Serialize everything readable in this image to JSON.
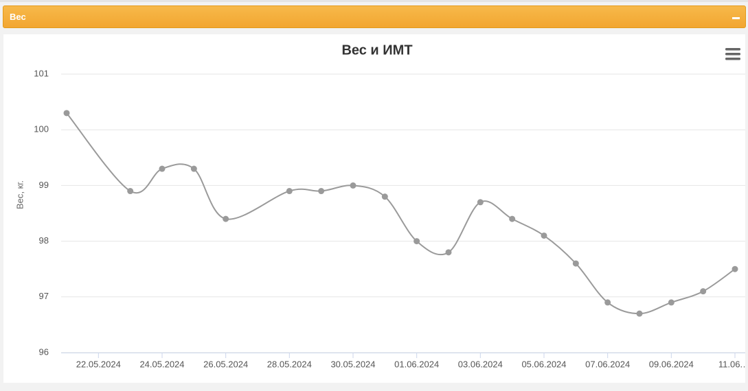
{
  "panel": {
    "title": "Вес"
  },
  "chart_data": {
    "type": "line",
    "title": "Вес и ИМТ",
    "y_label": "Вес, кг.",
    "x": [
      "21.05.2024",
      "23.05.2024",
      "24.05.2024",
      "25.05.2024",
      "26.05.2024",
      "28.05.2024",
      "29.05.2024",
      "30.05.2024",
      "31.05.2024",
      "01.06.2024",
      "02.06.2024",
      "03.06.2024",
      "04.06.2024",
      "05.06.2024",
      "06.06.2024",
      "07.06.2024",
      "08.06.2024",
      "09.06.2024",
      "10.06.2024",
      "11.06.2024"
    ],
    "series": [
      {
        "name": "Вес",
        "color": "#9a9a9a",
        "values": [
          100.3,
          98.9,
          99.3,
          99.3,
          98.4,
          98.9,
          98.9,
          99.0,
          98.8,
          98.0,
          97.8,
          98.7,
          98.4,
          98.1,
          97.6,
          96.9,
          96.7,
          96.9,
          97.1,
          97.5
        ]
      }
    ],
    "xticks": [
      "22.05.2024",
      "24.05.2024",
      "26.05.2024",
      "28.05.2024",
      "30.05.2024",
      "01.06.2024",
      "03.06.2024",
      "05.06.2024",
      "07.06.2024",
      "09.06.2024",
      {
        "value": "11.06.2024",
        "label": "11.06.…"
      }
    ],
    "ylim": [
      96,
      101
    ],
    "yticks": [
      96,
      97,
      98,
      99,
      100,
      101
    ],
    "grid": true
  }
}
